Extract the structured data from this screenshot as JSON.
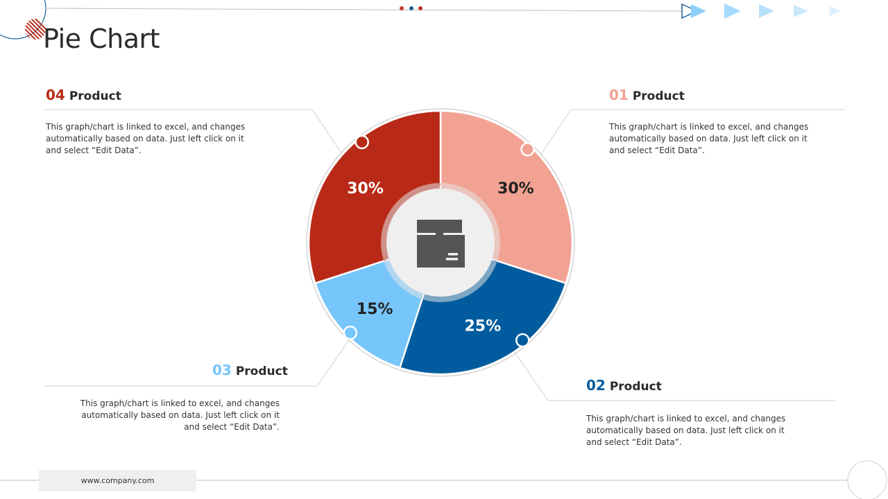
{
  "page": {
    "title": "Pie Chart",
    "footer_url": "www.company.com"
  },
  "colors": {
    "product_01": "#f2a293",
    "product_02": "#005c9e",
    "product_03": "#77c6fb",
    "product_04": "#b82a17",
    "center_bg": "#efefef",
    "icon": "#555555"
  },
  "products": [
    {
      "number": "01",
      "label": "Product",
      "description": "This graph/chart is linked to excel, and changes automatically based on data. Just left click on it and select “Edit Data”."
    },
    {
      "number": "02",
      "label": "Product",
      "description": "This graph/chart is linked to excel, and changes automatically based on data. Just left click on it and select “Edit Data”."
    },
    {
      "number": "03",
      "label": "Product",
      "description": "This graph/chart is linked to excel, and changes automatically based on data. Just left click on it and select “Edit Data”."
    },
    {
      "number": "04",
      "label": "Product",
      "description": "This graph/chart is linked to excel, and changes automatically based on data. Just left click on it and select “Edit Data”."
    }
  ],
  "chart_data": {
    "type": "pie",
    "title": "",
    "categories": [
      "01 Product",
      "02 Product",
      "03 Product",
      "04 Product"
    ],
    "values": [
      30,
      25,
      15,
      30
    ],
    "value_labels": [
      "30%",
      "25%",
      "15%",
      "30%"
    ],
    "colors": [
      "#f2a293",
      "#005c9e",
      "#77c6fb",
      "#b82a17"
    ],
    "label_colors": [
      "#222222",
      "#ffffff",
      "#222222",
      "#ffffff"
    ]
  }
}
